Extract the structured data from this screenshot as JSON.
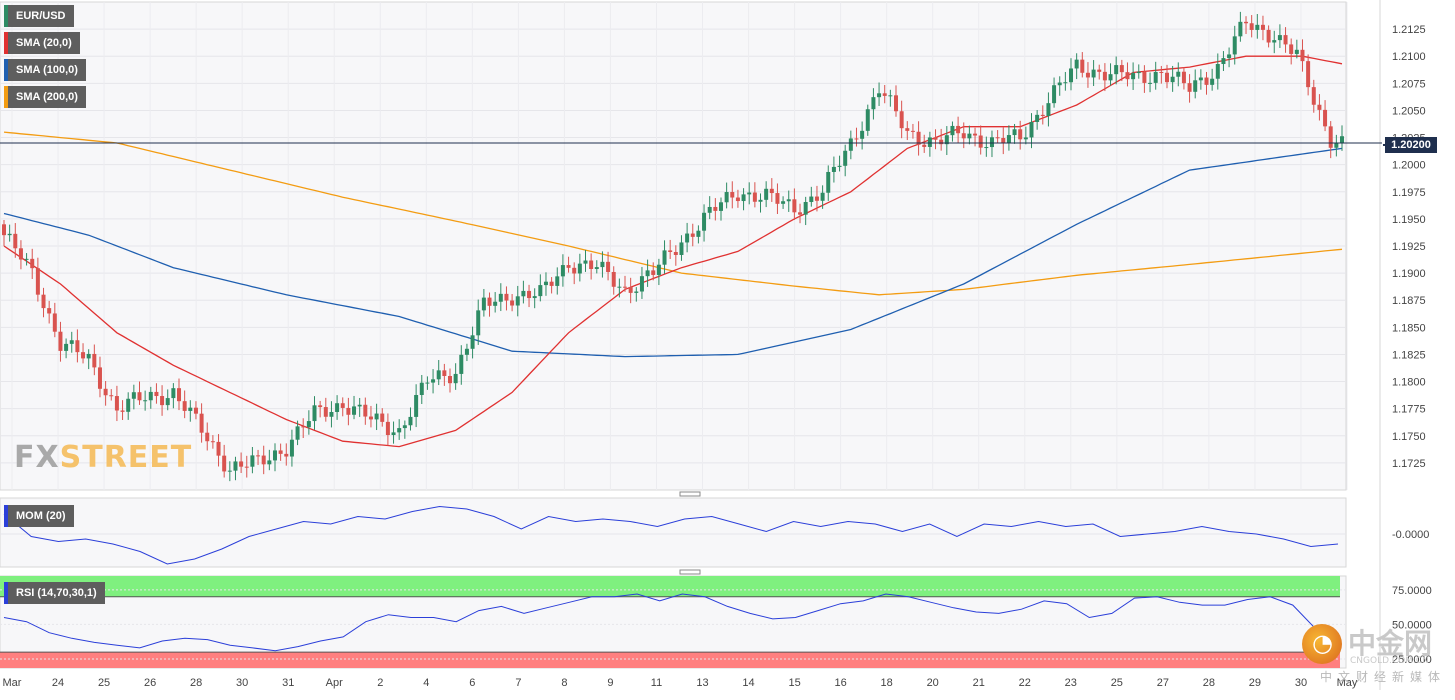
{
  "instrument": "EUR/USD",
  "watermark": {
    "fx": "FX",
    "street": "STREET"
  },
  "colors": {
    "up": "#2e8b64",
    "down": "#d9534f",
    "sma20": "#e03131",
    "sma100": "#1f5fb0",
    "sma200": "#f39c12",
    "indicator": "#2b3fd9",
    "rsi_over": "#7ff07f",
    "rsi_under": "#ff7f7f",
    "current": "#1f2f4e"
  },
  "legend": {
    "instrument": "EUR/USD",
    "sma20": "SMA (20,0)",
    "sma100": "SMA (100,0)",
    "sma200": "SMA (200,0)",
    "mom": "MOM (20)",
    "rsi": "RSI (14,70,30,1)"
  },
  "current_price_label": "1.20200",
  "logo": {
    "name": "中金网",
    "site": "CNGOLD.COM.CN",
    "tagline": "中文财经新媒体"
  },
  "chart_data": [
    {
      "type": "candlestick",
      "title": "EUR/USD",
      "timeframe": "4h",
      "ylim": [
        1.17,
        1.215
      ],
      "y_ticks": [
        "1.2125",
        "1.2100",
        "1.2075",
        "1.2050",
        "1.2025",
        "1.2000",
        "1.1975",
        "1.1950",
        "1.1925",
        "1.1900",
        "1.1875",
        "1.1850",
        "1.1825",
        "1.1800",
        "1.1775",
        "1.1750",
        "1.1725"
      ],
      "current_price": 1.202,
      "x_tick_labels": [
        "Mar",
        "24",
        "25",
        "26",
        "28",
        "30",
        "31",
        "Apr",
        "2",
        "4",
        "6",
        "7",
        "8",
        "9",
        "11",
        "13",
        "14",
        "15",
        "16",
        "18",
        "20",
        "21",
        "22",
        "23",
        "25",
        "27",
        "28",
        "29",
        "30",
        "May"
      ],
      "close_anchors": [
        [
          0,
          1.1935
        ],
        [
          5,
          1.19
        ],
        [
          10,
          1.1835
        ],
        [
          15,
          1.182
        ],
        [
          20,
          1.1775
        ],
        [
          25,
          1.1785
        ],
        [
          30,
          1.179
        ],
        [
          35,
          1.1755
        ],
        [
          40,
          1.172
        ],
        [
          45,
          1.1725
        ],
        [
          50,
          1.174
        ],
        [
          55,
          1.177
        ],
        [
          60,
          1.178
        ],
        [
          65,
          1.1765
        ],
        [
          70,
          1.1755
        ],
        [
          75,
          1.18
        ],
        [
          80,
          1.181
        ],
        [
          85,
          1.187
        ],
        [
          90,
          1.188
        ],
        [
          95,
          1.188
        ],
        [
          100,
          1.191
        ],
        [
          105,
          1.1905
        ],
        [
          110,
          1.1885
        ],
        [
          115,
          1.19
        ],
        [
          120,
          1.193
        ],
        [
          125,
          1.1955
        ],
        [
          130,
          1.1975
        ],
        [
          135,
          1.197
        ],
        [
          140,
          1.196
        ],
        [
          145,
          1.1975
        ],
        [
          150,
          1.202
        ],
        [
          155,
          1.207
        ],
        [
          160,
          1.203
        ],
        [
          165,
          1.202
        ],
        [
          170,
          1.203
        ],
        [
          175,
          1.202
        ],
        [
          180,
          1.2025
        ],
        [
          185,
          1.206
        ],
        [
          190,
          1.209
        ],
        [
          195,
          1.2085
        ],
        [
          200,
          1.208
        ],
        [
          205,
          1.2085
        ],
        [
          210,
          1.207
        ],
        [
          215,
          1.209
        ],
        [
          220,
          1.213
        ],
        [
          225,
          1.212
        ],
        [
          229,
          1.21
        ],
        [
          232,
          1.206
        ],
        [
          235,
          1.2025
        ],
        [
          237,
          1.202
        ]
      ],
      "sma20_anchors": [
        [
          0,
          1.1925
        ],
        [
          10,
          1.189
        ],
        [
          20,
          1.1845
        ],
        [
          30,
          1.1815
        ],
        [
          40,
          1.179
        ],
        [
          50,
          1.1765
        ],
        [
          60,
          1.1745
        ],
        [
          70,
          1.174
        ],
        [
          80,
          1.1755
        ],
        [
          90,
          1.179
        ],
        [
          100,
          1.1845
        ],
        [
          110,
          1.1885
        ],
        [
          120,
          1.1905
        ],
        [
          130,
          1.192
        ],
        [
          140,
          1.195
        ],
        [
          150,
          1.1975
        ],
        [
          160,
          1.2015
        ],
        [
          170,
          1.2035
        ],
        [
          180,
          1.2035
        ],
        [
          190,
          1.2055
        ],
        [
          200,
          1.2085
        ],
        [
          210,
          1.209
        ],
        [
          220,
          1.21
        ],
        [
          230,
          1.21
        ],
        [
          237,
          1.2093
        ]
      ],
      "sma100_anchors": [
        [
          0,
          1.1955
        ],
        [
          15,
          1.1935
        ],
        [
          30,
          1.1905
        ],
        [
          50,
          1.188
        ],
        [
          70,
          1.186
        ],
        [
          90,
          1.1828
        ],
        [
          110,
          1.1823
        ],
        [
          130,
          1.1825
        ],
        [
          150,
          1.1848
        ],
        [
          170,
          1.189
        ],
        [
          190,
          1.1945
        ],
        [
          210,
          1.1995
        ],
        [
          237,
          1.2015
        ]
      ],
      "sma200_anchors": [
        [
          0,
          1.203
        ],
        [
          20,
          1.202
        ],
        [
          40,
          1.1995
        ],
        [
          60,
          1.197
        ],
        [
          80,
          1.1948
        ],
        [
          100,
          1.1925
        ],
        [
          120,
          1.19
        ],
        [
          140,
          1.1888
        ],
        [
          155,
          1.188
        ],
        [
          170,
          1.1885
        ],
        [
          190,
          1.1898
        ],
        [
          210,
          1.1908
        ],
        [
          237,
          1.1922
        ]
      ]
    },
    {
      "type": "line",
      "title": "MOM (20)",
      "y_ticks": [
        "-0.0000"
      ],
      "values": [
        0.4,
        -0.05,
        -0.15,
        -0.1,
        -0.2,
        -0.35,
        -0.6,
        -0.5,
        -0.3,
        -0.05,
        0.1,
        0.25,
        0.2,
        0.35,
        0.3,
        0.45,
        0.55,
        0.5,
        0.35,
        0.1,
        0.35,
        0.25,
        0.3,
        0.25,
        0.15,
        0.3,
        0.35,
        0.2,
        0.05,
        0.25,
        0.15,
        0.25,
        0.2,
        0.05,
        0.2,
        -0.05,
        0.2,
        0.15,
        0.25,
        0.15,
        0.2,
        -0.05,
        0.0,
        0.05,
        0.15,
        0.05,
        0.0,
        -0.1,
        -0.25,
        -0.2
      ]
    },
    {
      "type": "line",
      "title": "RSI (14,70,30,1)",
      "y_ticks": [
        "75.0000",
        "50.0000",
        "25.0000"
      ],
      "overbought": 70,
      "oversold": 30,
      "values": [
        55,
        52,
        44,
        40,
        37,
        35,
        33,
        38,
        40,
        39,
        35,
        33,
        31,
        34,
        38,
        41,
        52,
        57,
        55,
        55,
        52,
        60,
        63,
        58,
        62,
        66,
        70,
        70,
        72,
        67,
        72,
        70,
        63,
        58,
        54,
        55,
        60,
        65,
        67,
        72,
        70,
        66,
        62,
        59,
        58,
        61,
        67,
        65,
        55,
        58,
        69,
        70,
        66,
        64,
        64,
        68,
        70,
        64,
        47,
        38
      ]
    }
  ]
}
